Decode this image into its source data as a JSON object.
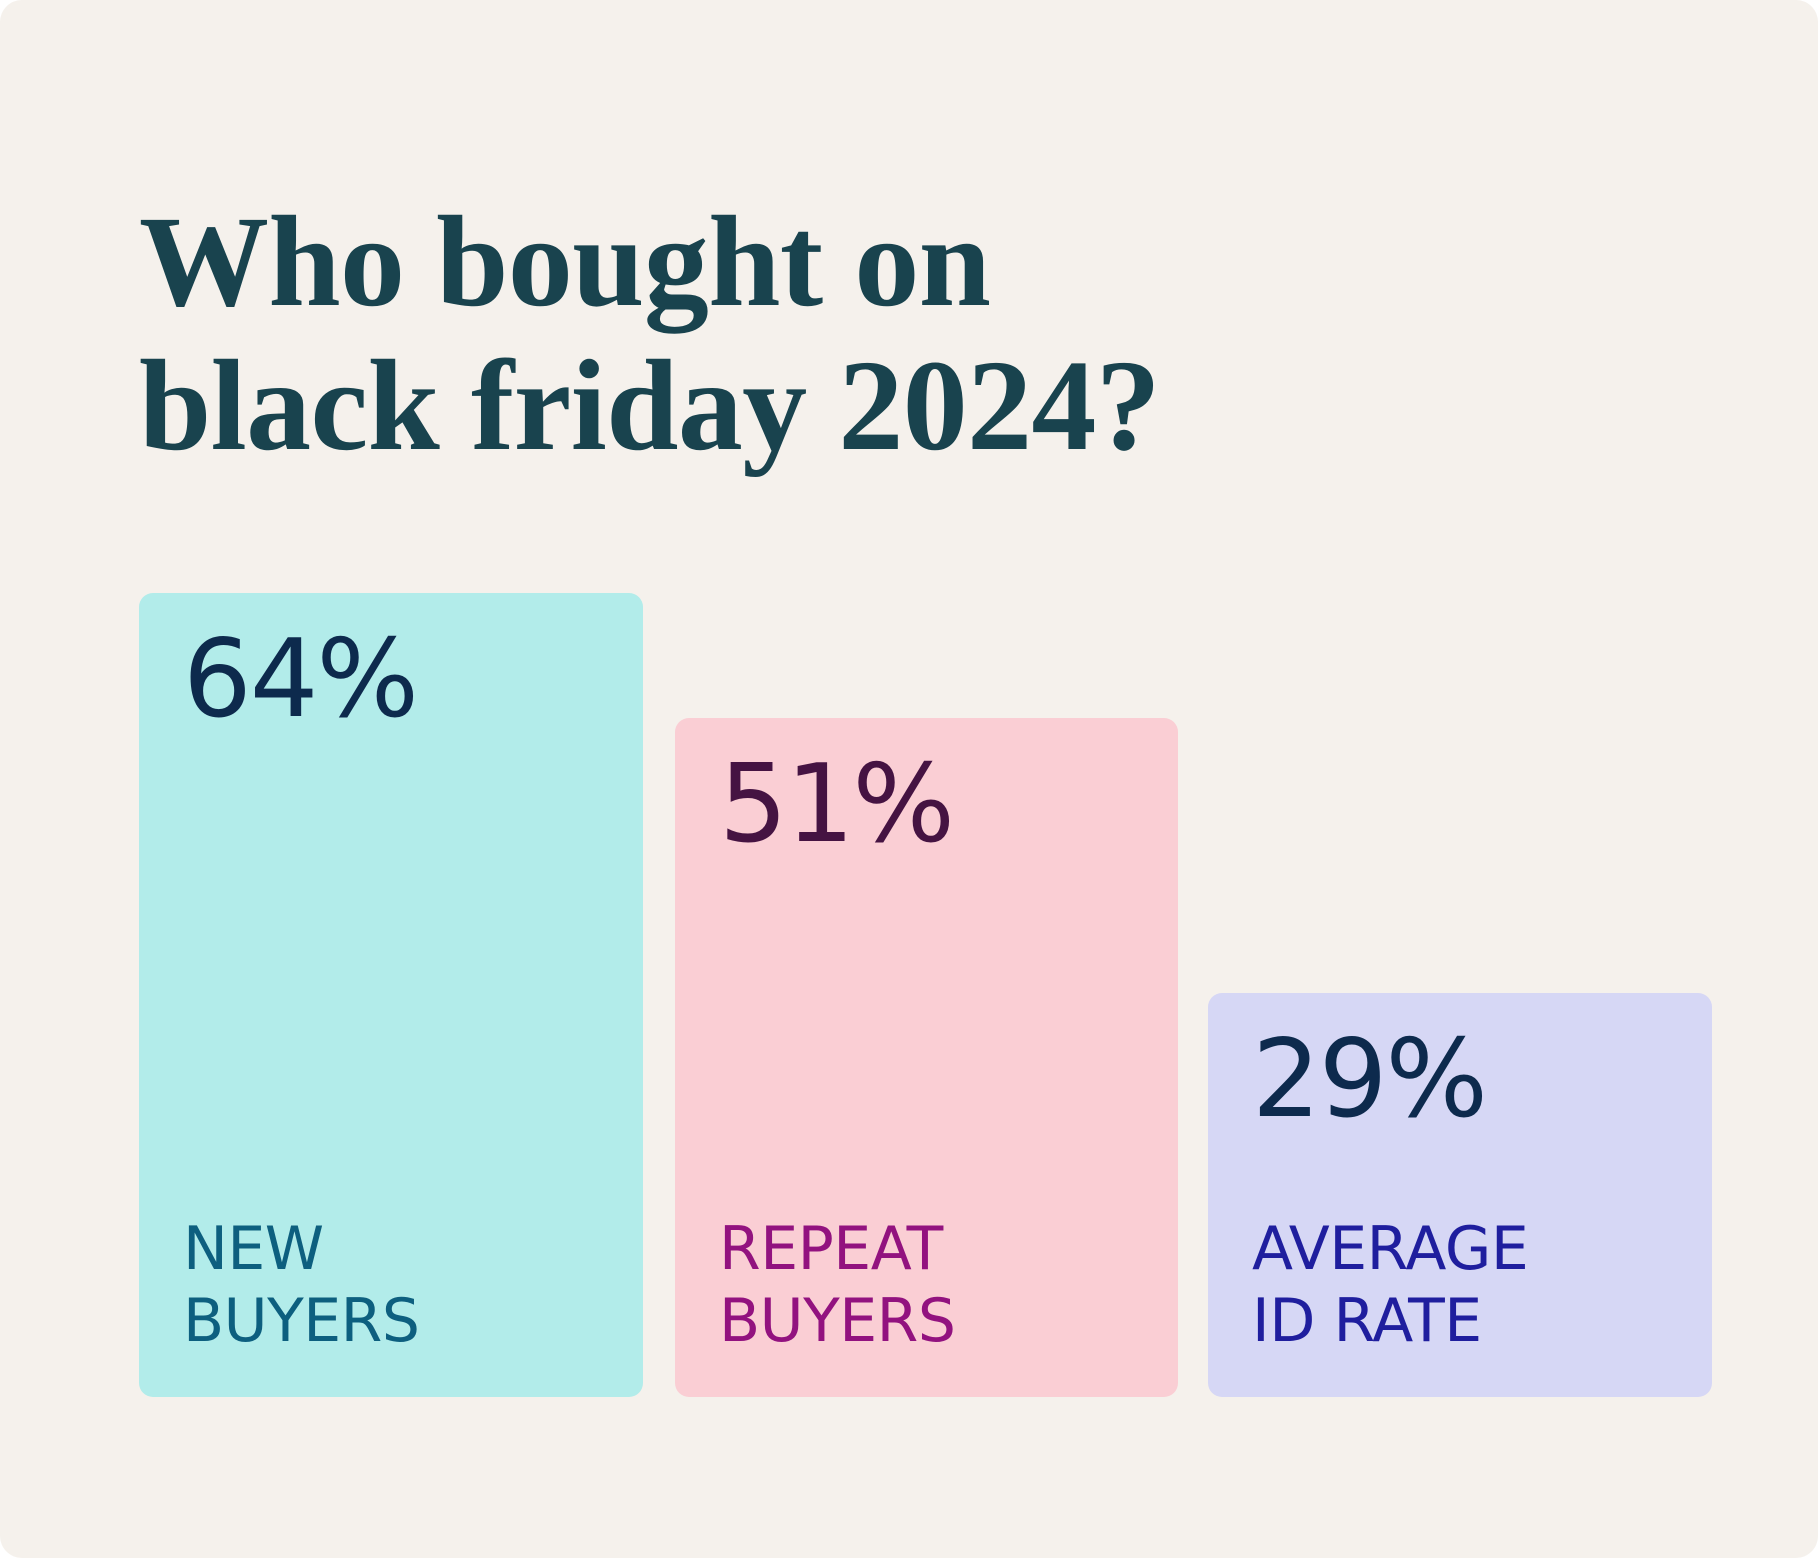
{
  "chart_data": {
    "type": "bar",
    "title": "Who bought on black friday 2024?",
    "title_lines": [
      "Who bought on",
      "black friday 2024?"
    ],
    "categories": [
      "NEW BUYERS",
      "REPEAT BUYERS",
      "AVERAGE ID RATE"
    ],
    "values": [
      64,
      51,
      29
    ],
    "unit": "%",
    "ylim": [
      0,
      100
    ],
    "grid": false,
    "legend": "none",
    "bars": [
      {
        "value_label": "64%",
        "label_line1": "NEW",
        "label_line2": "BUYERS",
        "fill": "#b2ecea",
        "value_color": "#0d2a4d",
        "label_color": "#0d5f7f"
      },
      {
        "value_label": "51%",
        "label_line1": "REPEAT",
        "label_line2": "BUYERS",
        "fill": "#faced4",
        "value_color": "#451342",
        "label_color": "#92127f"
      },
      {
        "value_label": "29%",
        "label_line1": "AVERAGE",
        "label_line2": "ID RATE",
        "fill": "#d6d7f5",
        "value_color": "#0d2a4d",
        "label_color": "#1f1e9e"
      }
    ],
    "colors": {
      "page_background": "#ffffff",
      "card_background": "#f5f1ec",
      "title": "#19434e"
    }
  }
}
